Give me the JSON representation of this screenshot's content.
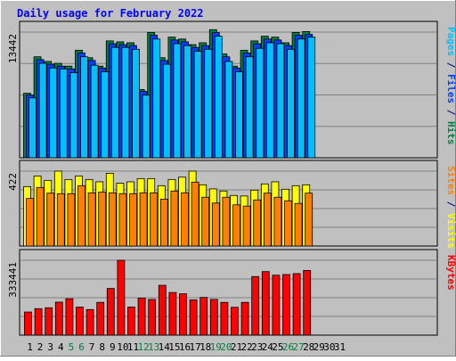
{
  "chart_data": {
    "type": "bar",
    "title": "Daily usage for February 2022",
    "days": [
      "1",
      "2",
      "3",
      "4",
      "5",
      "6",
      "7",
      "8",
      "9",
      "10",
      "11",
      "12",
      "13",
      "14",
      "15",
      "16",
      "17",
      "18",
      "19",
      "20",
      "21",
      "22",
      "23",
      "24",
      "25",
      "26",
      "27",
      "28",
      "29",
      "30",
      "31"
    ],
    "weekend_days": [
      "5",
      "6",
      "12",
      "13",
      "19",
      "20",
      "26",
      "27"
    ],
    "panels": [
      {
        "id": "hits-files-pages",
        "max_label": "13442",
        "ymax": 13442,
        "axis_label": {
          "parts": [
            {
              "text": "Pages",
              "color": "#00c0ff"
            },
            {
              "text": " / ",
              "color": "#000080"
            },
            {
              "text": "Files",
              "color": "#0040ff"
            },
            {
              "text": " / ",
              "color": "#000080"
            },
            {
              "text": "Hits",
              "color": "#008040"
            }
          ]
        },
        "series": [
          {
            "name": "Hits",
            "color": "#008040",
            "values": [
              6900,
              10800,
              10300,
              10100,
              9800,
              11500,
              10700,
              9800,
              12500,
              12400,
              12300,
              7300,
              13400,
              10700,
              12900,
              12700,
              12100,
              12300,
              13700,
              11100,
              9800,
              11500,
              12500,
              13000,
              12900,
              12300,
              13400,
              13500
            ]
          },
          {
            "name": "Files",
            "color": "#0040ff",
            "values": [
              6700,
              10500,
              10000,
              9800,
              9500,
              11200,
              10400,
              9600,
              12200,
              12100,
              12000,
              7100,
              13100,
              10400,
              12600,
              12400,
              11800,
              12000,
              13400,
              10800,
              9600,
              11200,
              12200,
              12700,
              12600,
              12000,
              13100,
              13200
            ]
          },
          {
            "name": "Pages",
            "color": "#00c0ff",
            "values": [
              6400,
              10100,
              9600,
              9500,
              9100,
              10800,
              9900,
              9200,
              11800,
              11800,
              11600,
              6700,
              12700,
              10000,
              12200,
              12000,
              11400,
              11600,
              13000,
              10300,
              9200,
              10800,
              11700,
              12300,
              12200,
              11600,
              12700,
              12900
            ]
          }
        ]
      },
      {
        "id": "visits-sites",
        "max_label": "422",
        "ymax": 422,
        "axis_label": {
          "parts": [
            {
              "text": "Sites",
              "color": "#ff8000"
            },
            {
              "text": " / ",
              "color": "#000080"
            },
            {
              "text": "Visits",
              "color": "#ffff00"
            }
          ]
        },
        "series": [
          {
            "name": "Visits",
            "color": "#ffff00",
            "values": [
              335,
              395,
              370,
              422,
              375,
              395,
              375,
              362,
              410,
              354,
              362,
              380,
              380,
              340,
              375,
              388,
              422,
              345,
              322,
              310,
              285,
              282,
              315,
              350,
              362,
              320,
              340,
              345
            ]
          },
          {
            "name": "Sites",
            "color": "#ff8000",
            "values": [
              268,
              330,
              298,
              295,
              295,
              340,
              300,
              304,
              300,
              295,
              295,
              300,
              300,
              264,
              310,
              300,
              360,
              275,
              242,
              275,
              232,
              225,
              260,
              298,
              275,
              255,
              240,
              298
            ]
          }
        ]
      },
      {
        "id": "kbytes",
        "max_label": "333441",
        "ymax": 333441,
        "axis_label": {
          "parts": [
            {
              "text": "KBytes",
              "color": "#ff0000"
            }
          ]
        },
        "series": [
          {
            "name": "KBytes",
            "color": "#ff0000",
            "values": [
              103000,
              118000,
              122000,
              147000,
              162000,
              125000,
              114000,
              146000,
              208000,
              333441,
              125000,
              165000,
              159000,
              222000,
              190000,
              184000,
              157000,
              168000,
              159000,
              146000,
              124000,
              146000,
              261000,
              283000,
              267000,
              270000,
              274000,
              288000
            ]
          }
        ]
      }
    ],
    "grid": true
  }
}
